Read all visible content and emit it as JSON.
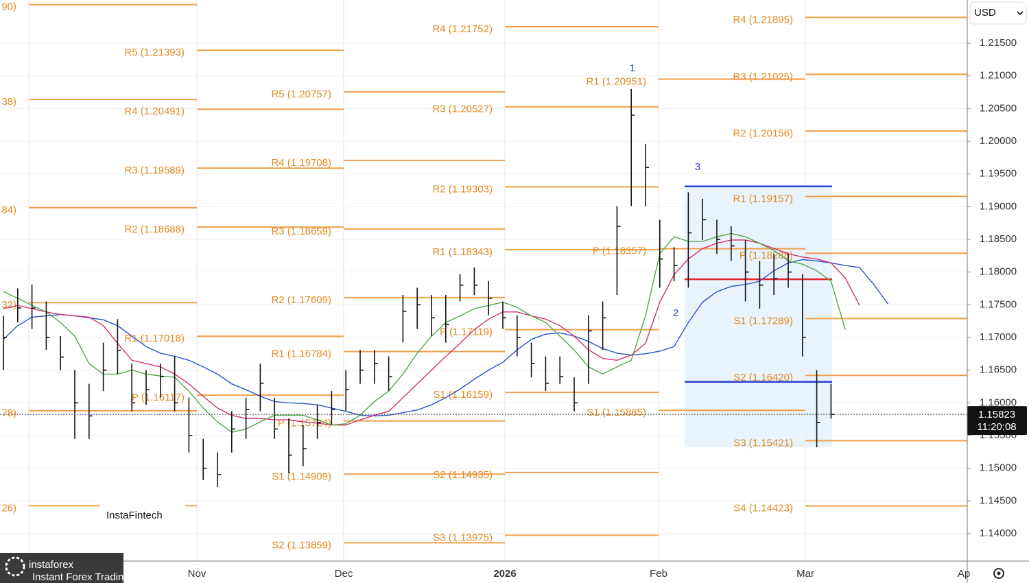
{
  "chart_data": {
    "type": "ohlc",
    "currency": "USD",
    "categories": [
      null,
      null,
      null,
      null,
      null,
      null,
      null,
      null,
      null,
      null,
      null,
      null,
      null,
      null,
      null,
      null,
      null,
      null,
      null,
      null,
      null,
      null,
      null,
      null,
      null,
      null,
      null,
      null,
      null,
      null,
      null,
      null,
      null,
      null,
      null,
      null,
      null,
      null,
      null,
      null,
      null,
      null,
      null,
      null,
      null,
      null,
      null,
      null,
      null,
      null,
      null,
      null,
      null,
      null,
      null,
      null,
      null,
      null,
      null,
      null,
      null,
      null,
      null
    ],
    "month_labels": [
      "Nov",
      "Dec",
      "2026",
      "Feb",
      "Mar",
      "Ap"
    ],
    "high": [
      1.1733,
      1.1775,
      1.1781,
      1.1755,
      1.1702,
      1.165,
      1.1629,
      1.1692,
      1.1728,
      1.166,
      1.165,
      1.166,
      1.1671,
      1.1608,
      1.1545,
      1.1524,
      1.1587,
      1.1608,
      1.166,
      1.1608,
      1.1576,
      1.1566,
      1.1597,
      1.1618,
      1.165,
      1.1681,
      1.1681,
      1.1671,
      1.1765,
      1.1776,
      1.1765,
      1.1765,
      1.1797,
      1.1807,
      1.1786,
      1.1755,
      1.1734,
      1.1692,
      1.1671,
      1.1671,
      1.1639,
      1.1734,
      1.1755,
      1.1901,
      1.208,
      1.1996,
      1.188,
      1.1838,
      1.1922,
      1.1912,
      1.188,
      1.187,
      1.1849,
      1.1817,
      1.1828,
      1.1828,
      1.1797,
      1.165,
      1.1629,
      null,
      null,
      null,
      null
    ],
    "low": [
      1.165,
      1.1723,
      1.1713,
      1.1681,
      1.165,
      1.1545,
      1.1545,
      1.1618,
      1.1644,
      1.1587,
      1.1597,
      1.1608,
      1.1587,
      1.1524,
      1.1482,
      1.1471,
      1.1524,
      1.1545,
      1.1587,
      1.1545,
      1.1492,
      1.1503,
      1.1545,
      1.1566,
      1.1587,
      1.1629,
      1.1629,
      1.1618,
      1.1692,
      1.1713,
      1.1702,
      1.1692,
      1.1755,
      1.1765,
      1.1734,
      1.1713,
      1.1671,
      1.1639,
      1.1618,
      1.1629,
      1.1587,
      1.1629,
      1.1681,
      1.1765,
      1.1901,
      1.1901,
      1.1776,
      1.1786,
      1.1776,
      1.1849,
      1.1828,
      1.1817,
      1.1755,
      1.1744,
      1.1765,
      1.1776,
      1.1671,
      1.1532,
      1.1576,
      null,
      null,
      null,
      null
    ],
    "close": [
      1.17,
      1.1745,
      1.1745,
      1.17,
      1.167,
      1.16,
      1.158,
      1.165,
      1.168,
      1.16,
      1.162,
      1.164,
      1.16,
      1.155,
      1.15,
      1.149,
      1.156,
      1.159,
      1.163,
      1.156,
      1.152,
      1.153,
      1.157,
      1.159,
      1.162,
      1.165,
      1.166,
      1.164,
      1.174,
      1.175,
      1.173,
      1.172,
      1.178,
      1.178,
      1.176,
      1.173,
      1.17,
      1.166,
      1.163,
      1.164,
      1.16,
      1.171,
      1.173,
      1.187,
      1.204,
      1.196,
      1.182,
      1.181,
      1.186,
      1.188,
      1.185,
      1.184,
      1.18,
      1.178,
      1.179,
      1.18,
      1.17,
      1.157,
      1.15823,
      null,
      null,
      null,
      null
    ],
    "bar_color": "#111111",
    "moving_averages": [
      {
        "color": "#2a55c9",
        "values": [
          1.1697,
          1.1718,
          1.1731,
          1.1733,
          1.1735,
          1.1733,
          1.173,
          1.1727,
          1.1718,
          1.1702,
          1.1686,
          1.1676,
          1.1671,
          1.1665,
          1.1655,
          1.1644,
          1.1629,
          1.162,
          1.161,
          1.1602,
          1.16,
          1.1599,
          1.1597,
          1.1592,
          1.1587,
          1.1581,
          1.158,
          1.1581,
          1.1585,
          1.1589,
          1.1597,
          1.1608,
          1.1621,
          1.1636,
          1.165,
          1.1662,
          1.1681,
          1.1697,
          1.1705,
          1.1707,
          1.1702,
          1.1694,
          1.1683,
          1.1676,
          1.1673,
          1.1675,
          1.1679,
          1.1686,
          1.1723,
          1.1754,
          1.177,
          1.1778,
          1.1781,
          1.1786,
          1.1802,
          1.1814,
          1.1819,
          1.1817,
          1.1814,
          1.181,
          1.1807,
          1.1781,
          1.1751
        ]
      },
      {
        "color": "#d1306a",
        "values": [
          1.1744,
          1.1749,
          1.1744,
          1.1739,
          1.1735,
          1.1733,
          1.1731,
          1.1718,
          1.1691,
          1.1665,
          1.166,
          1.1655,
          1.1644,
          1.1629,
          1.161,
          1.1592,
          1.1581,
          1.1576,
          1.1576,
          1.1574,
          1.1574,
          1.1571,
          1.1569,
          1.1566,
          1.1566,
          1.1574,
          1.1581,
          1.1587,
          1.1608,
          1.1629,
          1.165,
          1.1671,
          1.1691,
          1.1712,
          1.1728,
          1.1739,
          1.1739,
          1.1733,
          1.1728,
          1.1718,
          1.1702,
          1.1681,
          1.1668,
          1.1665,
          1.1673,
          1.1691,
          1.1754,
          1.1796,
          1.182,
          1.1836,
          1.1844,
          1.1849,
          1.1849,
          1.1844,
          1.1836,
          1.1828,
          1.1823,
          1.182,
          1.1814,
          1.1791,
          1.1749,
          null,
          null
        ]
      },
      {
        "color": "#4fa84a",
        "values": [
          1.177,
          1.176,
          1.1749,
          1.1739,
          1.1723,
          1.1702,
          1.166,
          1.1644,
          1.1644,
          1.165,
          1.1644,
          1.1641,
          1.1639,
          1.1618,
          1.1592,
          1.1571,
          1.1555,
          1.156,
          1.1571,
          1.1581,
          1.1581,
          1.1581,
          1.1574,
          1.1566,
          1.1568,
          1.1581,
          1.1602,
          1.1618,
          1.1644,
          1.1676,
          1.1702,
          1.1723,
          1.1733,
          1.1744,
          1.1749,
          1.1754,
          1.1746,
          1.1733,
          1.1723,
          1.1702,
          1.1681,
          1.1655,
          1.1644,
          1.1655,
          1.1665,
          1.1733,
          1.1828,
          1.1854,
          1.1847,
          1.1847,
          1.1854,
          1.1859,
          1.1854,
          1.1844,
          1.1833,
          1.1817,
          1.1812,
          1.1802,
          1.1786,
          1.1712,
          null,
          null,
          null
        ]
      }
    ],
    "pivot_color": "#f0a04b",
    "pivot_label_color": "#e48a22",
    "pivots": [
      {
        "levels": [
          {
            "value": 1.2209,
            "label": "90)"
          },
          {
            "value": 1.20638,
            "label": "38)"
          },
          {
            "value": 1.18984,
            "label": "84)"
          },
          {
            "value": 1.17532,
            "label": "32)"
          },
          {
            "value": 1.15878,
            "label": "78)"
          },
          {
            "value": 1.14426,
            "label": "26)"
          }
        ]
      },
      {
        "levels": [
          {
            "value": 1.21393,
            "label": "R5 (1.21393)"
          },
          {
            "value": 1.20491,
            "label": "R4 (1.20491)"
          },
          {
            "value": 1.19589,
            "label": "R3 (1.19589)"
          },
          {
            "value": 1.18688,
            "label": "R2 (1.18688)"
          },
          {
            "value": 1.17018,
            "label": "R1 (1.17018)"
          },
          {
            "value": 1.16117,
            "label": "P (1.16117)"
          }
        ]
      },
      {
        "levels": [
          {
            "value": 1.20757,
            "label": "R5 (1.20757)"
          },
          {
            "value": 1.19708,
            "label": "R4 (1.19708)"
          },
          {
            "value": 1.18659,
            "label": "R3 (1.18659)"
          },
          {
            "value": 1.17609,
            "label": "R2 (1.17609)"
          },
          {
            "value": 1.16784,
            "label": "R1 (1.16784)"
          },
          {
            "value": 1.15724,
            "label": "P (1.15724)"
          },
          {
            "value": 1.14909,
            "label": "S1 (1.14909)"
          },
          {
            "value": 1.13859,
            "label": "S2 (1.13859)"
          }
        ]
      },
      {
        "levels": [
          {
            "value": 1.21752,
            "label": "R4 (1.21752)"
          },
          {
            "value": 1.20527,
            "label": "R3 (1.20527)"
          },
          {
            "value": 1.19303,
            "label": "R2 (1.19303)"
          },
          {
            "value": 1.18343,
            "label": "R1 (1.18343)"
          },
          {
            "value": 1.17119,
            "label": "P (1.17119)"
          },
          {
            "value": 1.16159,
            "label": "S1 (1.16159)"
          },
          {
            "value": 1.14935,
            "label": "S2 (1.14935)"
          },
          {
            "value": 1.13975,
            "label": "S3 (1.13975)"
          }
        ]
      },
      {
        "levels": [
          {
            "value": 1.20951,
            "label": "R1 (1.20951)"
          },
          {
            "value": 1.18357,
            "label": "P (1.18357)"
          },
          {
            "value": 1.15885,
            "label": "S1 (1.15885)"
          }
        ]
      },
      {
        "levels": [
          {
            "value": 1.21895,
            "label": "R4 (1.21895)"
          },
          {
            "value": 1.21025,
            "label": "R3 (1.21025)"
          },
          {
            "value": 1.20156,
            "label": "R2 (1.20156)"
          },
          {
            "value": 1.19157,
            "label": "R1 (1.19157)"
          },
          {
            "value": 1.18288,
            "label": "P (1.18288)"
          },
          {
            "value": 1.17289,
            "label": "S1 (1.17289)"
          },
          {
            "value": 1.1642,
            "label": "S2 (1.16420)"
          },
          {
            "value": 1.15421,
            "label": "S3 (1.15421)"
          },
          {
            "value": 1.14423,
            "label": "S4 (1.14423)"
          }
        ]
      }
    ],
    "profile": {
      "top": 1.1931,
      "bottom": 1.1532,
      "fill": "#e3f0fb",
      "lines": [
        {
          "value": 1.1931,
          "color": "#2b3fd6"
        },
        {
          "value": 1.1789,
          "color": "#e0282e"
        },
        {
          "value": 1.1632,
          "color": "#2b3fd6"
        }
      ]
    },
    "annotations": [
      "1",
      "2",
      "3"
    ],
    "annotation_color": "#2b4acb",
    "last_price": 1.15823,
    "countdown": "11:20:08",
    "ylim": [
      1.1358,
      1.22161
    ],
    "yticks": [
      {
        "value": 1.14,
        "label": "1.14000"
      },
      {
        "value": 1.145,
        "label": "1.14500"
      },
      {
        "value": 1.15,
        "label": "1.15000"
      },
      {
        "value": 1.155,
        "label": "1.15500"
      },
      {
        "value": 1.16,
        "label": "1.16000"
      },
      {
        "value": 1.165,
        "label": "1.16500"
      },
      {
        "value": 1.17,
        "label": "1.17000"
      },
      {
        "value": 1.175,
        "label": "1.17500"
      },
      {
        "value": 1.18,
        "label": "1.18000"
      },
      {
        "value": 1.185,
        "label": "1.18500"
      },
      {
        "value": 1.19,
        "label": "1.19000"
      },
      {
        "value": 1.195,
        "label": "1.19500"
      },
      {
        "value": 1.2,
        "label": "1.20000"
      },
      {
        "value": 1.205,
        "label": "1.20500"
      },
      {
        "value": 1.21,
        "label": "1.21000"
      },
      {
        "value": 1.215,
        "label": "1.21500"
      }
    ],
    "grid": true
  },
  "watermark": "InstaFintech",
  "logo": {
    "name": "instaforex",
    "tagline": "Instant Forex Trading"
  }
}
